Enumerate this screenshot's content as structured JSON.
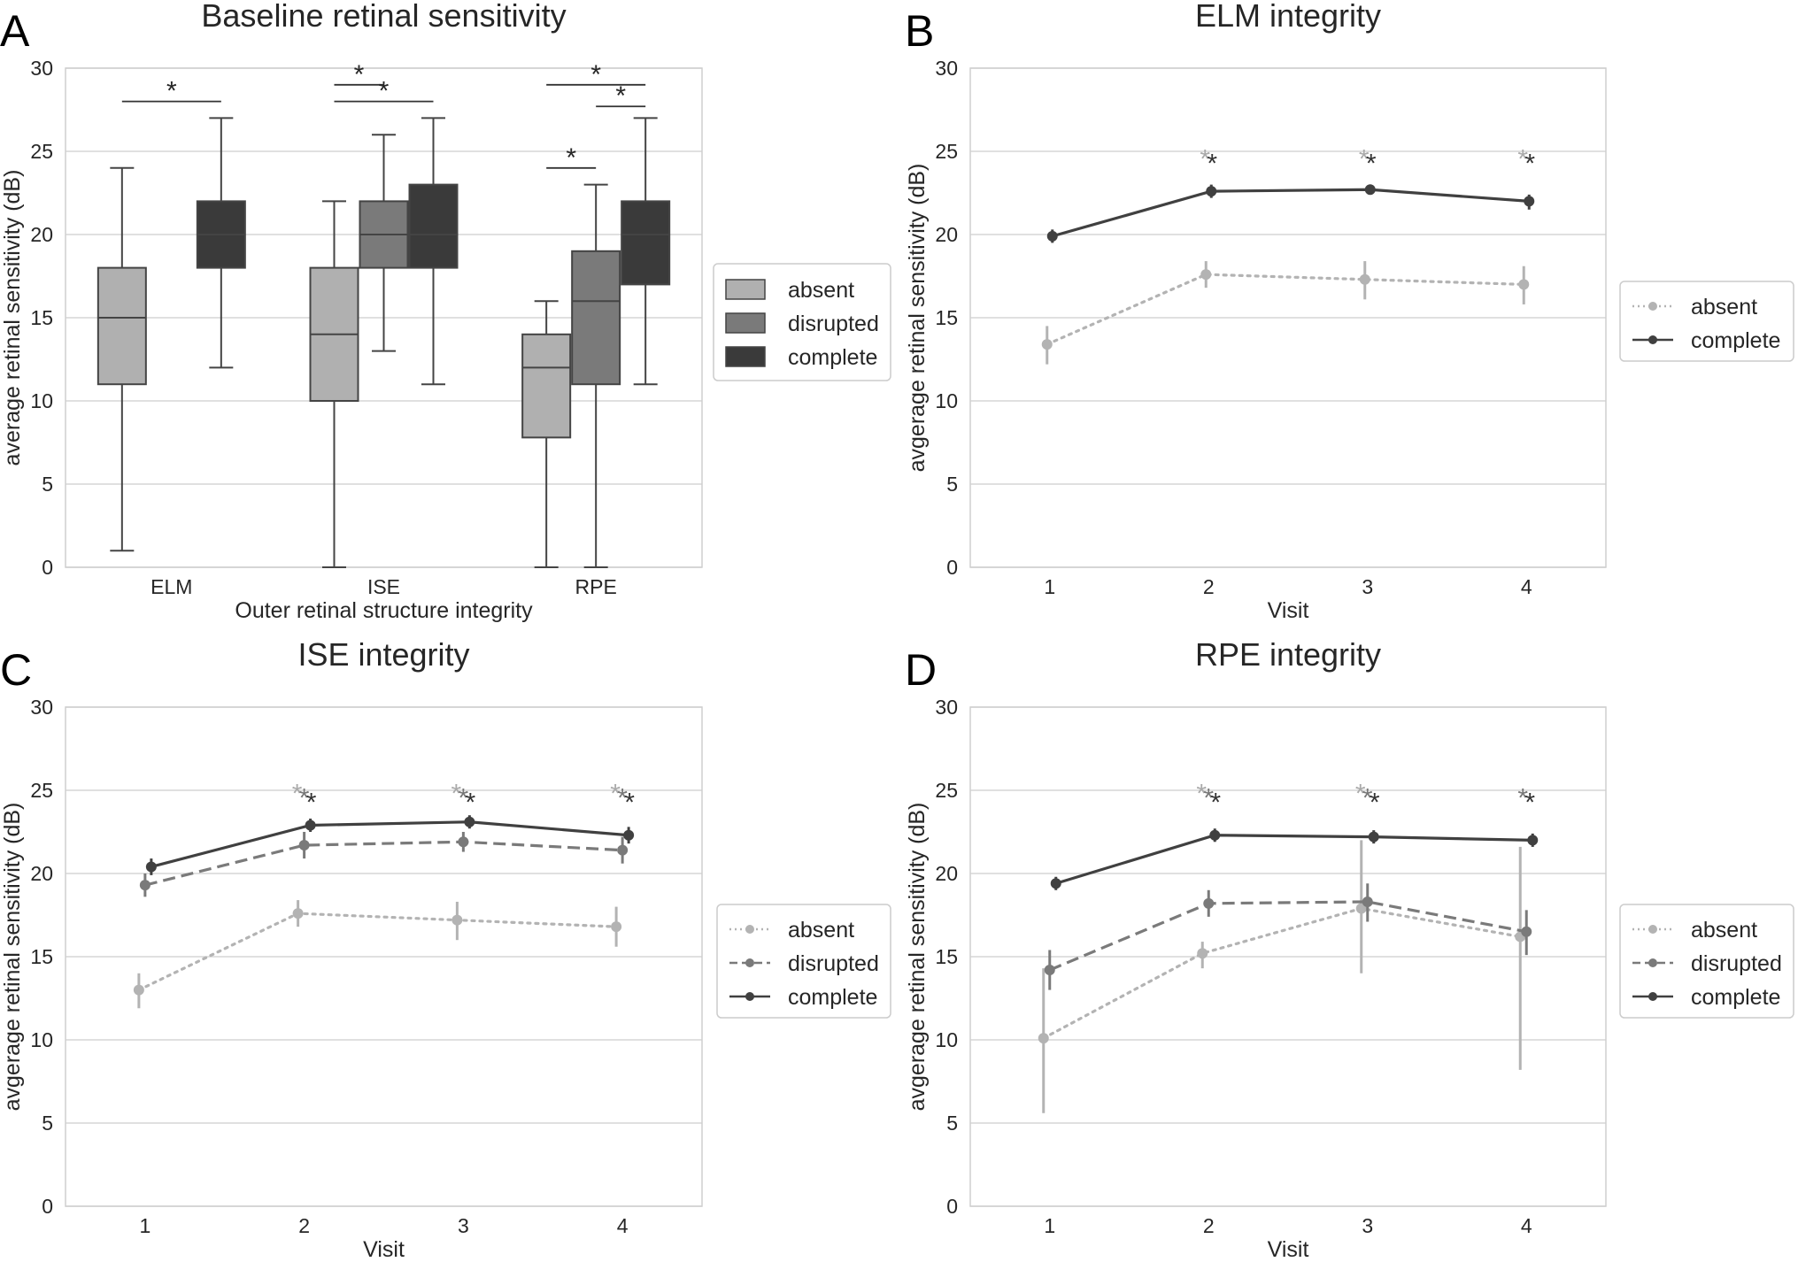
{
  "chart_data": [
    {
      "panel": "A",
      "type": "box",
      "title": "Baseline retinal sensitivity",
      "xlabel": "Outer retinal structure integrity",
      "ylabel": "average retinal sensitivity (dB)",
      "ylim": [
        0,
        30
      ],
      "yticks": [
        0,
        5,
        10,
        15,
        20,
        25,
        30
      ],
      "categories": [
        "ELM",
        "ISE",
        "RPE"
      ],
      "hue_order": [
        "absent",
        "disrupted",
        "complete"
      ],
      "colors": {
        "absent": "#b0b0b0",
        "disrupted": "#7a7a7a",
        "complete": "#3a3a3a"
      },
      "legend": [
        "absent",
        "disrupted",
        "complete"
      ],
      "boxes": [
        {
          "category": "ELM",
          "hue": "absent",
          "whislo": 1,
          "q1": 11,
          "med": 15,
          "q3": 18,
          "whishi": 24
        },
        {
          "category": "ELM",
          "hue": "complete",
          "whislo": 12,
          "q1": 18,
          "med": 20,
          "q3": 22,
          "whishi": 27
        },
        {
          "category": "ISE",
          "hue": "absent",
          "whislo": 0,
          "q1": 10,
          "med": 14,
          "q3": 18,
          "whishi": 22
        },
        {
          "category": "ISE",
          "hue": "disrupted",
          "whislo": 13,
          "q1": 18,
          "med": 20,
          "q3": 22,
          "whishi": 26
        },
        {
          "category": "ISE",
          "hue": "complete",
          "whislo": 11,
          "q1": 18,
          "med": 20,
          "q3": 23,
          "whishi": 27
        },
        {
          "category": "RPE",
          "hue": "absent",
          "whislo": 0,
          "q1": 7.8,
          "med": 12,
          "q3": 14,
          "whishi": 16
        },
        {
          "category": "RPE",
          "hue": "disrupted",
          "whislo": 0,
          "q1": 11,
          "med": 16,
          "q3": 19,
          "whishi": 23
        },
        {
          "category": "RPE",
          "hue": "complete",
          "whislo": 11,
          "q1": 17,
          "med": 20,
          "q3": 22,
          "whishi": 27
        }
      ],
      "significance": [
        {
          "category": "ELM",
          "from": "absent",
          "to": "complete",
          "y": 28.0,
          "label": "*"
        },
        {
          "category": "ISE",
          "from": "absent",
          "to": "disrupted",
          "y": 29.0,
          "label": "*"
        },
        {
          "category": "ISE",
          "from": "absent",
          "to": "complete",
          "y": 28.0,
          "label": "*"
        },
        {
          "category": "RPE",
          "from": "absent",
          "to": "complete",
          "y": 29.0,
          "label": "*"
        },
        {
          "category": "RPE",
          "from": "disrupted",
          "to": "complete",
          "y": 27.7,
          "label": "*"
        },
        {
          "category": "RPE",
          "from": "absent",
          "to": "disrupted",
          "y": 24.0,
          "label": "*"
        }
      ]
    },
    {
      "panel": "B",
      "type": "line",
      "title": "ELM integrity",
      "xlabel": "Visit",
      "ylabel": "avgerage retinal sensitivity (dB)",
      "ylim": [
        0,
        30
      ],
      "yticks": [
        0,
        5,
        10,
        15,
        20,
        25,
        30
      ],
      "x": [
        1,
        2,
        3,
        4
      ],
      "legend": [
        "absent",
        "complete"
      ],
      "series": [
        {
          "name": "absent",
          "color": "#b3b3b3",
          "dash": "dotted",
          "values": [
            13.4,
            17.6,
            17.3,
            17.0
          ],
          "err_low": [
            12.2,
            16.8,
            16.1,
            15.8
          ],
          "err_high": [
            14.5,
            18.4,
            18.4,
            18.1
          ]
        },
        {
          "name": "complete",
          "color": "#404040",
          "dash": "solid",
          "values": [
            19.9,
            22.6,
            22.7,
            22.0
          ],
          "err_low": [
            19.5,
            22.2,
            22.4,
            21.5
          ],
          "err_high": [
            20.3,
            23.0,
            23.0,
            22.4
          ]
        }
      ],
      "stars": [
        {
          "x": 2,
          "colors": [
            "#aaaaaa",
            "#333333"
          ]
        },
        {
          "x": 3,
          "colors": [
            "#aaaaaa",
            "#333333"
          ]
        },
        {
          "x": 4,
          "colors": [
            "#aaaaaa",
            "#333333"
          ]
        }
      ]
    },
    {
      "panel": "C",
      "type": "line",
      "title": "ISE integrity",
      "xlabel": "Visit",
      "ylabel": "avgerage retinal sensitivity (dB)",
      "ylim": [
        0,
        30
      ],
      "yticks": [
        0,
        5,
        10,
        15,
        20,
        25,
        30
      ],
      "x": [
        1,
        2,
        3,
        4
      ],
      "legend": [
        "absent",
        "disrupted",
        "complete"
      ],
      "series": [
        {
          "name": "absent",
          "color": "#b3b3b3",
          "dash": "dotted",
          "values": [
            13.0,
            17.6,
            17.2,
            16.8
          ],
          "err_low": [
            11.9,
            16.8,
            16.0,
            15.6
          ],
          "err_high": [
            14.0,
            18.4,
            18.3,
            18.0
          ]
        },
        {
          "name": "disrupted",
          "color": "#7a7a7a",
          "dash": "dashed",
          "values": [
            19.3,
            21.7,
            21.9,
            21.4
          ],
          "err_low": [
            18.6,
            20.9,
            21.3,
            20.6
          ],
          "err_high": [
            20.0,
            22.5,
            22.5,
            22.2
          ]
        },
        {
          "name": "complete",
          "color": "#404040",
          "dash": "solid",
          "values": [
            20.4,
            22.9,
            23.1,
            22.3
          ],
          "err_low": [
            19.9,
            22.5,
            22.7,
            21.8
          ],
          "err_high": [
            20.9,
            23.3,
            23.5,
            22.8
          ]
        }
      ],
      "stars": [
        {
          "x": 2,
          "colors": [
            "#aaaaaa",
            "#777777",
            "#333333"
          ]
        },
        {
          "x": 3,
          "colors": [
            "#aaaaaa",
            "#777777",
            "#333333"
          ]
        },
        {
          "x": 4,
          "colors": [
            "#aaaaaa",
            "#777777",
            "#333333"
          ]
        }
      ]
    },
    {
      "panel": "D",
      "type": "line",
      "title": "RPE integrity",
      "xlabel": "Visit",
      "ylabel": "avgerage retinal sensitivity (dB)",
      "ylim": [
        0,
        30
      ],
      "yticks": [
        0,
        5,
        10,
        15,
        20,
        25,
        30
      ],
      "x": [
        1,
        2,
        3,
        4
      ],
      "legend": [
        "absent",
        "disrupted",
        "complete"
      ],
      "series": [
        {
          "name": "absent",
          "color": "#b3b3b3",
          "dash": "dotted",
          "values": [
            10.1,
            15.2,
            17.9,
            16.2
          ],
          "err_low": [
            5.6,
            14.3,
            14.0,
            8.2
          ],
          "err_high": [
            14.3,
            15.9,
            22.0,
            21.6
          ]
        },
        {
          "name": "disrupted",
          "color": "#7a7a7a",
          "dash": "dashed",
          "values": [
            14.2,
            18.2,
            18.3,
            16.5
          ],
          "err_low": [
            13.0,
            17.4,
            17.1,
            15.1
          ],
          "err_high": [
            15.4,
            19.0,
            19.4,
            17.8
          ]
        },
        {
          "name": "complete",
          "color": "#404040",
          "dash": "solid",
          "values": [
            19.4,
            22.3,
            22.2,
            22.0
          ],
          "err_low": [
            19.0,
            21.9,
            21.8,
            21.6
          ],
          "err_high": [
            19.8,
            22.7,
            22.6,
            22.4
          ]
        }
      ],
      "stars": [
        {
          "x": 2,
          "colors": [
            "#aaaaaa",
            "#777777",
            "#333333"
          ]
        },
        {
          "x": 3,
          "colors": [
            "#aaaaaa",
            "#777777",
            "#333333"
          ]
        },
        {
          "x": 4,
          "colors": [
            "#777777",
            "#333333"
          ]
        }
      ]
    }
  ]
}
